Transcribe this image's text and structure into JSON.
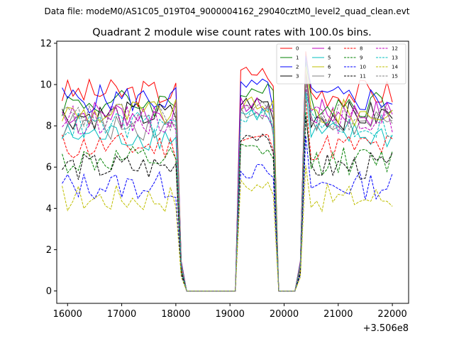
{
  "chart_data": {
    "type": "line",
    "supertitle": "Data file: modeM0/AS1C05_019T04_9000004162_29040cztM0_level2_quad_clean.evt",
    "title": "Quadrant 2 module wise count rates with 100.0s bins.",
    "offset_label": "+3.506e8",
    "xlim": [
      15800,
      22300
    ],
    "ylim": [
      -0.6,
      12.1
    ],
    "xticks": [
      16000,
      17000,
      18000,
      19000,
      20000,
      21000,
      22000
    ],
    "yticks": [
      0,
      2,
      4,
      6,
      8,
      10,
      12
    ],
    "grid": false,
    "legend_position": "top-right",
    "x": [
      15900,
      16000,
      16100,
      16200,
      16300,
      16400,
      16500,
      16600,
      16700,
      16800,
      16900,
      17000,
      17100,
      17200,
      17300,
      17400,
      17500,
      17600,
      17700,
      17800,
      17900,
      18000,
      18100,
      18200,
      18300,
      18400,
      18500,
      18600,
      18700,
      18800,
      18900,
      19000,
      19100,
      19200,
      19300,
      19400,
      19500,
      19600,
      19700,
      19800,
      19900,
      20000,
      20100,
      20200,
      20300,
      20400,
      20500,
      20600,
      20700,
      20800,
      20900,
      21000,
      21100,
      21200,
      21300,
      21400,
      21500,
      21600,
      21700,
      21800,
      21900,
      22000
    ],
    "gaps": [
      [
        18220,
        18250
      ],
      [
        19060,
        19120
      ],
      [
        19830,
        19920
      ],
      [
        20220,
        20300
      ]
    ],
    "series": [
      {
        "name": "0",
        "color": "#ff0000",
        "dash": "solid",
        "base": 9.6,
        "spike": 10.6
      },
      {
        "name": "1",
        "color": "#008000",
        "dash": "solid",
        "base": 9.1,
        "spike": 9.7
      },
      {
        "name": "2",
        "color": "#0000ff",
        "dash": "solid",
        "base": 9.3,
        "spike": 9.9
      },
      {
        "name": "3",
        "color": "#000000",
        "dash": "solid",
        "base": 8.5,
        "spike": 9.1
      },
      {
        "name": "4",
        "color": "#bf00bf",
        "dash": "solid",
        "base": 8.6,
        "spike": 9.0
      },
      {
        "name": "5",
        "color": "#00bfbf",
        "dash": "solid",
        "base": 7.5,
        "spike": 8.6
      },
      {
        "name": "6",
        "color": "#bfbf00",
        "dash": "solid",
        "base": 8.6,
        "spike": 9.0
      },
      {
        "name": "7",
        "color": "#808080",
        "dash": "solid",
        "base": 8.0,
        "spike": 8.7
      },
      {
        "name": "8",
        "color": "#ff0000",
        "dash": "dashed",
        "base": 7.0,
        "spike": 7.4
      },
      {
        "name": "9",
        "color": "#008000",
        "dash": "dashed",
        "base": 6.3,
        "spike": 6.8
      },
      {
        "name": "10",
        "color": "#0000ff",
        "dash": "dashed",
        "base": 5.1,
        "spike": 5.8
      },
      {
        "name": "11",
        "color": "#000000",
        "dash": "dashed",
        "base": 6.0,
        "spike": 7.6
      },
      {
        "name": "12",
        "color": "#bf00bf",
        "dash": "dashed",
        "base": 8.3,
        "spike": 8.8
      },
      {
        "name": "13",
        "color": "#00bfbf",
        "dash": "dashed",
        "base": 8.0,
        "spike": 8.5
      },
      {
        "name": "14",
        "color": "#bfbf00",
        "dash": "dashed",
        "base": 4.5,
        "spike": 5.1
      },
      {
        "name": "15",
        "color": "#808080",
        "dash": "dashed",
        "base": 8.4,
        "spike": 8.8
      }
    ]
  }
}
